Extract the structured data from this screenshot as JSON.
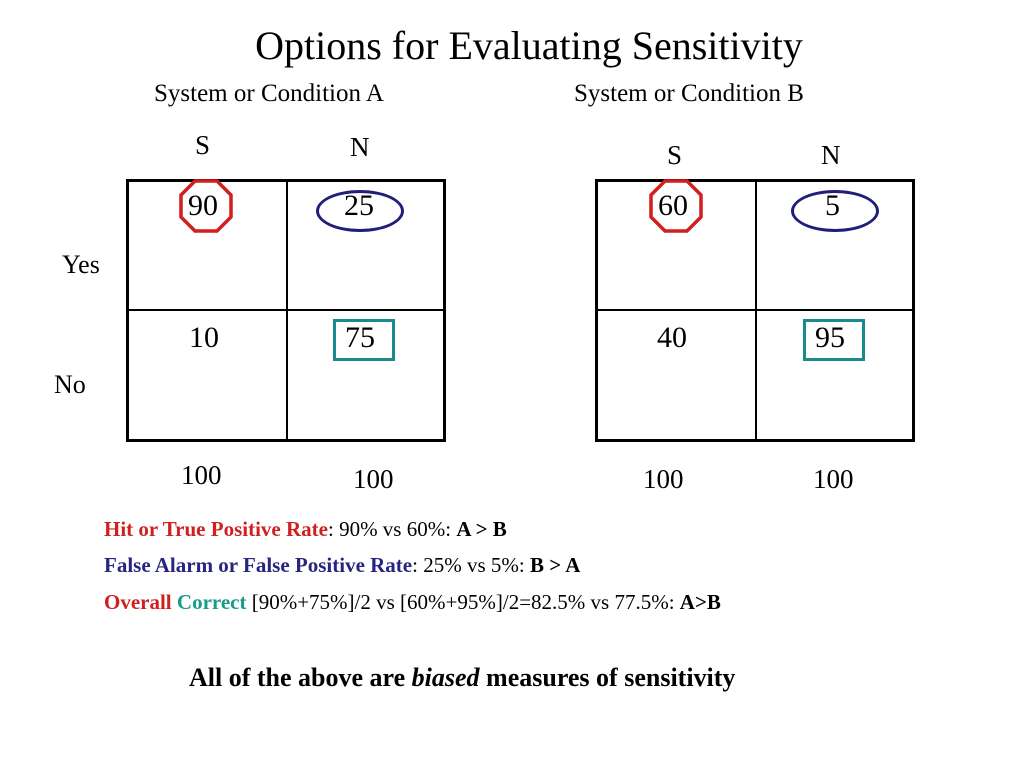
{
  "title": "Options for Evaluating Sensitivity",
  "conditions": {
    "a": {
      "label": "System or Condition A",
      "col_s": "S",
      "col_n": "N",
      "cells": {
        "yes_s": "90",
        "yes_n": "25",
        "no_s": "10",
        "no_n": "75"
      },
      "totals": {
        "s": "100",
        "n": "100"
      }
    },
    "b": {
      "label": "System or Condition B",
      "col_s": "S",
      "col_n": "N",
      "cells": {
        "yes_s": "60",
        "yes_n": "5",
        "no_s": "40",
        "no_n": "95"
      },
      "totals": {
        "s": "100",
        "n": "100"
      }
    }
  },
  "rows": {
    "yes": "Yes",
    "no": "No"
  },
  "lines": {
    "hit": {
      "label": "Hit or True Positive Rate",
      "sep": ": ",
      "text": "90% vs 60%: ",
      "result": "A > B"
    },
    "false_alarm": {
      "label": "False Alarm or False Positive Rate",
      "sep": ": ",
      "text": "25% vs 5%: ",
      "result": "B > A"
    },
    "overall": {
      "label1": "Overall",
      "label2": "Correct",
      "text": " [90%+75%]/2 vs [60%+95%]/2=82.5% vs 77.5%: ",
      "result": "A>B"
    }
  },
  "conclusion": {
    "pre": "All of the above are ",
    "em": "biased",
    "post": " measures of sensitivity"
  },
  "colors": {
    "hit": "#d11f1f",
    "false_alarm": "#262680",
    "correct": "#1a9a8a"
  },
  "marks": {
    "hit": "octagon",
    "false_alarm": "oval",
    "correct": "square"
  }
}
